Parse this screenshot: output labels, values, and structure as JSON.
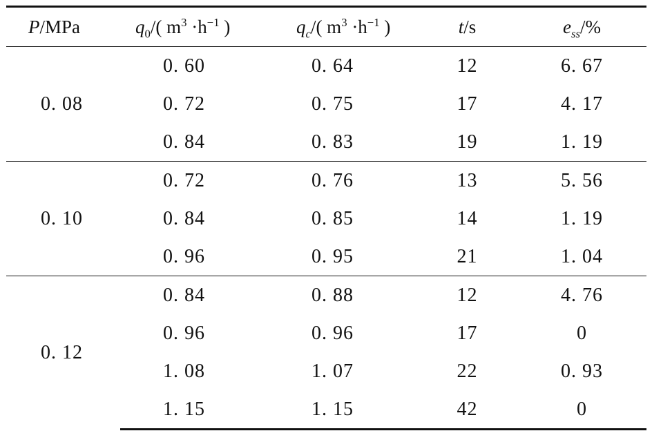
{
  "headers": {
    "p": {
      "sym": "P",
      "unit": "/MPa"
    },
    "q0": {
      "sym": "q",
      "sub": "0",
      "unit_open": "/( m",
      "sup1": "3",
      "dot": " ·h",
      "sup2": "−1",
      "unit_close": " )"
    },
    "qc": {
      "sym": "q",
      "sub": "c",
      "unit_open": "/( m",
      "sup1": "3",
      "dot": " ·h",
      "sup2": "−1",
      "unit_close": " )"
    },
    "t": {
      "sym": "t",
      "unit": "/s"
    },
    "e": {
      "sym": "e",
      "sub": "ss",
      "unit": "/%"
    }
  },
  "groups": [
    {
      "p": "0. 08",
      "rows": [
        {
          "q0": "0. 60",
          "qc": "0. 64",
          "t": "12",
          "e": "6. 67"
        },
        {
          "q0": "0. 72",
          "qc": "0. 75",
          "t": "17",
          "e": "4. 17"
        },
        {
          "q0": "0. 84",
          "qc": "0. 83",
          "t": "19",
          "e": "1. 19"
        }
      ]
    },
    {
      "p": "0. 10",
      "rows": [
        {
          "q0": "0. 72",
          "qc": "0. 76",
          "t": "13",
          "e": "5. 56"
        },
        {
          "q0": "0. 84",
          "qc": "0. 85",
          "t": "14",
          "e": "1. 19"
        },
        {
          "q0": "0. 96",
          "qc": "0. 95",
          "t": "21",
          "e": "1. 04"
        }
      ]
    },
    {
      "p": "0. 12",
      "rows": [
        {
          "q0": "0. 84",
          "qc": "0. 88",
          "t": "12",
          "e": "4. 76"
        },
        {
          "q0": "0. 96",
          "qc": "0. 96",
          "t": "17",
          "e": "0"
        },
        {
          "q0": "1. 08",
          "qc": "1. 07",
          "t": "22",
          "e": "0. 93"
        },
        {
          "q0": "1. 15",
          "qc": "1. 15",
          "t": "42",
          "e": "0"
        }
      ]
    }
  ]
}
